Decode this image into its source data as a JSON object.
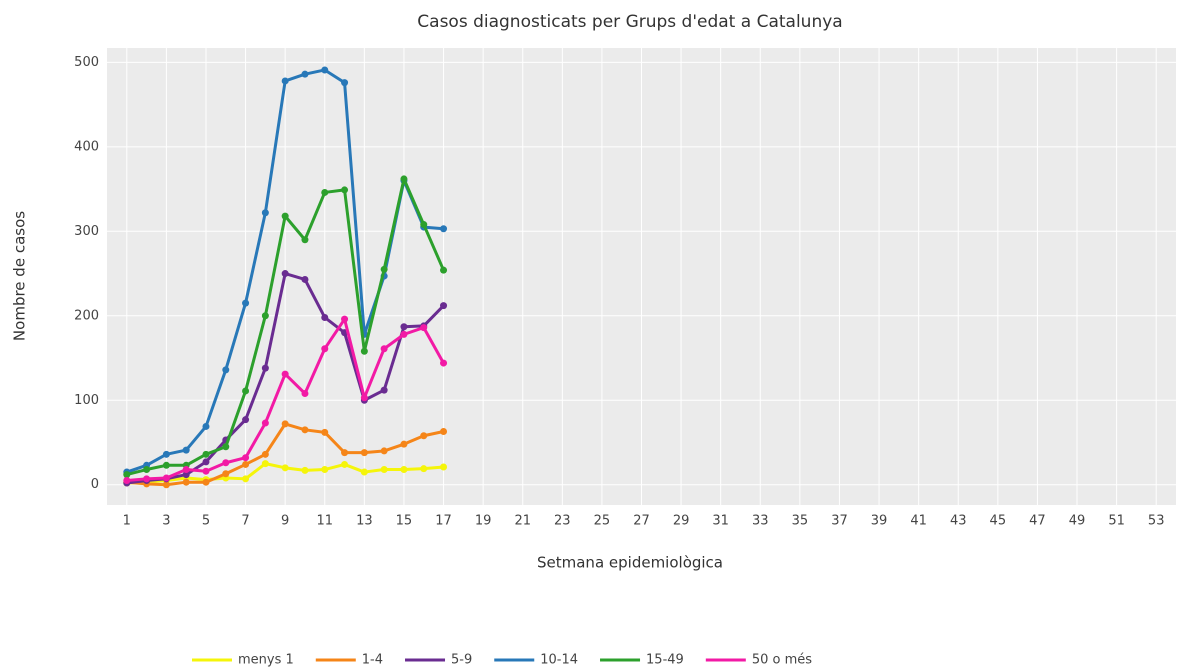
{
  "chart_data": {
    "type": "line",
    "title": "Casos diagnosticats per Grups d'edat a Catalunya",
    "x_label": "Setmana epidemiològica",
    "y_label": "Nombre de casos",
    "x": [
      1,
      2,
      3,
      4,
      5,
      6,
      7,
      8,
      9,
      10,
      11,
      12,
      13,
      14,
      15,
      16,
      17
    ],
    "series": [
      {
        "name": "menys 1",
        "color": "#f5f50a",
        "values": [
          2,
          3,
          5,
          8,
          6,
          8,
          7,
          25,
          20,
          17,
          18,
          24,
          15,
          18,
          18,
          19,
          21
        ]
      },
      {
        "name": "1-4",
        "color": "#f58518",
        "values": [
          3,
          1,
          0,
          3,
          3,
          13,
          24,
          36,
          72,
          65,
          62,
          38,
          38,
          40,
          48,
          58,
          63
        ]
      },
      {
        "name": "5-9",
        "color": "#6a2c91",
        "values": [
          2,
          5,
          7,
          12,
          27,
          53,
          77,
          138,
          250,
          243,
          198,
          180,
          100,
          112,
          187,
          188,
          212
        ]
      },
      {
        "name": "10-14",
        "color": "#2878b8",
        "values": [
          15,
          23,
          36,
          41,
          69,
          136,
          215,
          322,
          478,
          486,
          491,
          476,
          178,
          247,
          360,
          305,
          303
        ]
      },
      {
        "name": "15-49",
        "color": "#2ca02c",
        "values": [
          12,
          18,
          23,
          23,
          36,
          45,
          111,
          200,
          318,
          290,
          346,
          349,
          158,
          255,
          362,
          308,
          254
        ]
      },
      {
        "name": "50 o més",
        "color": "#f21aa5",
        "values": [
          5,
          7,
          8,
          18,
          16,
          26,
          32,
          73,
          131,
          108,
          161,
          196,
          103,
          161,
          178,
          186,
          144
        ]
      }
    ],
    "xlim": [
      0,
      54
    ],
    "xticks": [
      1,
      3,
      5,
      7,
      9,
      11,
      13,
      15,
      17,
      19,
      21,
      23,
      25,
      27,
      29,
      31,
      33,
      35,
      37,
      39,
      41,
      43,
      45,
      47,
      49,
      51,
      53
    ],
    "ylim": [
      -24,
      517
    ],
    "yticks": [
      0,
      100,
      200,
      300,
      400,
      500
    ],
    "grid": true,
    "legend": "bottom"
  }
}
